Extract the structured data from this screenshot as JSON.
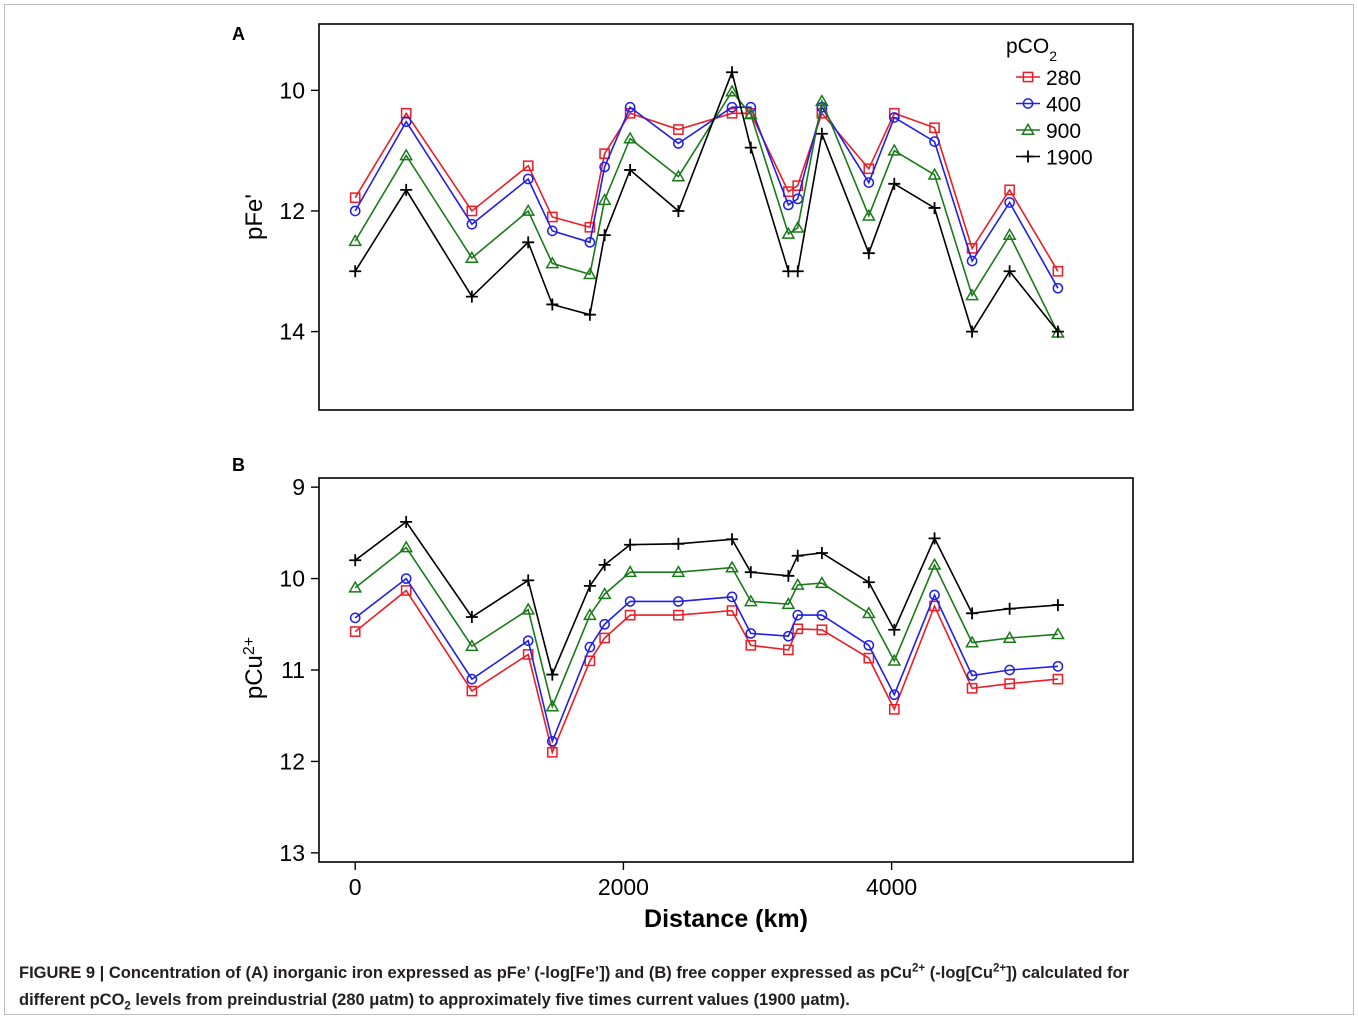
{
  "chart_data": [
    {
      "panel": "A",
      "type": "line",
      "ylabel": "pFe'",
      "ylabel_sup": "",
      "xlabel": "",
      "y_reversed": true,
      "ylim": [
        8.9,
        15.3
      ],
      "xlim": [
        -270,
        5800
      ],
      "yticks": [
        10,
        12,
        14
      ],
      "xticks": [],
      "legend": {
        "title": "pCO",
        "title_sub": "2",
        "placement": "top-right",
        "entries": [
          "280",
          "400",
          "900",
          "1900"
        ]
      },
      "x": [
        0,
        380,
        870,
        1290,
        1470,
        1750,
        1860,
        2050,
        2410,
        2810,
        2950,
        3230,
        3300,
        3480,
        3830,
        4020,
        4320,
        4600,
        4880,
        5240
      ],
      "series": [
        {
          "name": "280",
          "color": "#ee1c24",
          "marker": "square",
          "values": [
            11.78,
            10.38,
            12.0,
            11.25,
            12.1,
            12.27,
            11.05,
            10.38,
            10.65,
            10.38,
            10.38,
            11.68,
            11.58,
            10.38,
            11.3,
            10.38,
            10.62,
            12.62,
            11.65,
            13.0
          ]
        },
        {
          "name": "400",
          "color": "#1f1fe8",
          "marker": "circle",
          "values": [
            12.0,
            10.52,
            12.22,
            11.47,
            12.33,
            12.52,
            11.27,
            10.28,
            10.88,
            10.28,
            10.28,
            11.9,
            11.8,
            10.28,
            11.53,
            10.45,
            10.85,
            12.83,
            11.86,
            13.28
          ]
        },
        {
          "name": "900",
          "color": "#1a7a1a",
          "marker": "triangle",
          "values": [
            12.5,
            11.08,
            12.78,
            12.0,
            12.87,
            13.05,
            11.82,
            10.8,
            11.43,
            10.02,
            10.4,
            12.38,
            12.28,
            10.18,
            12.08,
            11.0,
            11.4,
            13.4,
            12.4,
            14.02
          ]
        },
        {
          "name": "1900",
          "color": "#000000",
          "marker": "plus",
          "values": [
            13.0,
            11.65,
            13.42,
            12.52,
            13.55,
            13.72,
            12.4,
            11.32,
            12.0,
            9.7,
            10.95,
            13.0,
            13.0,
            10.72,
            12.7,
            11.55,
            11.95,
            14.0,
            13.0,
            14.0
          ]
        }
      ]
    },
    {
      "panel": "B",
      "type": "line",
      "ylabel": "pCu",
      "ylabel_sup": "2+",
      "xlabel": "Distance (km)",
      "y_reversed": true,
      "ylim": [
        8.9,
        13.1
      ],
      "xlim": [
        -270,
        5800
      ],
      "yticks": [
        9,
        10,
        11,
        12,
        13
      ],
      "xticks": [
        0,
        2000,
        4000
      ],
      "x": [
        0,
        380,
        870,
        1290,
        1470,
        1750,
        1860,
        2050,
        2410,
        2810,
        2950,
        3230,
        3300,
        3480,
        3830,
        4020,
        4320,
        4600,
        4880,
        5240
      ],
      "series": [
        {
          "name": "280",
          "color": "#ee1c24",
          "marker": "square",
          "values": [
            10.58,
            10.13,
            11.23,
            10.83,
            11.9,
            10.9,
            10.65,
            10.4,
            10.4,
            10.35,
            10.73,
            10.78,
            10.55,
            10.56,
            10.87,
            11.43,
            10.3,
            11.2,
            11.15,
            11.1
          ]
        },
        {
          "name": "400",
          "color": "#1f1fe8",
          "marker": "circle",
          "values": [
            10.43,
            10.0,
            11.1,
            10.68,
            11.78,
            10.75,
            10.5,
            10.25,
            10.25,
            10.2,
            10.6,
            10.63,
            10.4,
            10.4,
            10.73,
            11.27,
            10.18,
            11.06,
            11.0,
            10.96
          ]
        },
        {
          "name": "900",
          "color": "#1a7a1a",
          "marker": "triangle",
          "values": [
            10.1,
            9.66,
            10.74,
            10.34,
            11.4,
            10.4,
            10.17,
            9.93,
            9.93,
            9.88,
            10.25,
            10.28,
            10.07,
            10.05,
            10.38,
            10.9,
            9.85,
            10.7,
            10.65,
            10.61
          ]
        },
        {
          "name": "1900",
          "color": "#000000",
          "marker": "plus",
          "values": [
            9.8,
            9.38,
            10.42,
            10.02,
            11.05,
            10.08,
            9.85,
            9.63,
            9.62,
            9.57,
            9.93,
            9.97,
            9.75,
            9.72,
            10.04,
            10.56,
            9.56,
            10.38,
            10.33,
            10.29
          ]
        }
      ]
    }
  ],
  "caption": {
    "line1_a": "FIGURE 9 | Concentration of (A) inorganic iron expressed as pFe’ (-log[Fe’]) and (B) free copper expressed as pCu",
    "line1_sup1": "2+",
    "line1_b": " (-log[Cu",
    "line1_sup2": "2+",
    "line1_c": "]) calculated for",
    "line2_a": "different pCO",
    "line2_sub": "2",
    "line2_b": " levels from preindustrial (280 μatm) to approximately five times current values (1900 μatm)."
  }
}
